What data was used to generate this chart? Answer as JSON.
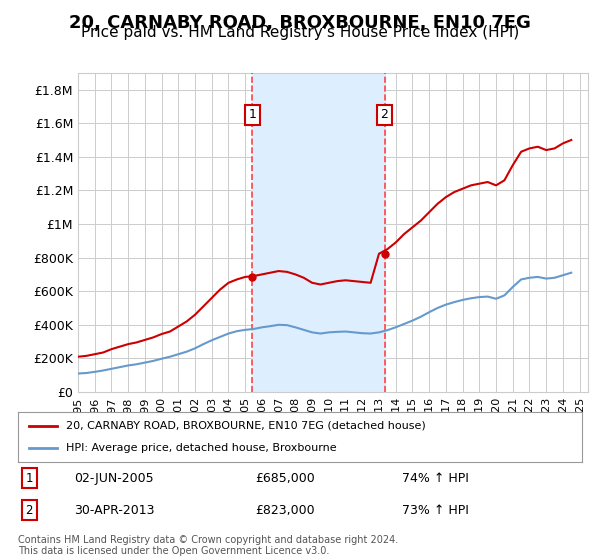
{
  "title": "20, CARNABY ROAD, BROXBOURNE, EN10 7EG",
  "subtitle": "Price paid vs. HM Land Registry's House Price Index (HPI)",
  "title_fontsize": 13,
  "subtitle_fontsize": 11,
  "bg_color": "#ffffff",
  "plot_bg_color": "#ffffff",
  "grid_color": "#cccccc",
  "red_line_color": "#cc0000",
  "blue_line_color": "#6699cc",
  "highlight_fill": "#ddeeff",
  "dashed_color": "#ff4444",
  "sale1_x": 2005.42,
  "sale1_y": 685000,
  "sale2_x": 2013.33,
  "sale2_y": 823000,
  "sale1_label": "02-JUN-2005",
  "sale1_price": "£685,000",
  "sale1_hpi": "74% ↑ HPI",
  "sale2_label": "30-APR-2013",
  "sale2_price": "£823,000",
  "sale2_hpi": "73% ↑ HPI",
  "legend_label1": "20, CARNABY ROAD, BROXBOURNE, EN10 7EG (detached house)",
  "legend_label2": "HPI: Average price, detached house, Broxbourne",
  "footer": "Contains HM Land Registry data © Crown copyright and database right 2024.\nThis data is licensed under the Open Government Licence v3.0.",
  "ylim": [
    0,
    1900000
  ],
  "xlim": [
    1995,
    2025.5
  ],
  "yticks": [
    0,
    200000,
    400000,
    600000,
    800000,
    1000000,
    1200000,
    1400000,
    1600000,
    1800000
  ],
  "ytick_labels": [
    "£0",
    "£200K",
    "£400K",
    "£600K",
    "£800K",
    "£1M",
    "£1.2M",
    "£1.4M",
    "£1.6M",
    "£1.8M"
  ],
  "xticks": [
    1995,
    1996,
    1997,
    1998,
    1999,
    2000,
    2001,
    2002,
    2003,
    2004,
    2005,
    2006,
    2007,
    2008,
    2009,
    2010,
    2011,
    2012,
    2013,
    2014,
    2015,
    2016,
    2017,
    2018,
    2019,
    2020,
    2021,
    2022,
    2023,
    2024,
    2025
  ]
}
